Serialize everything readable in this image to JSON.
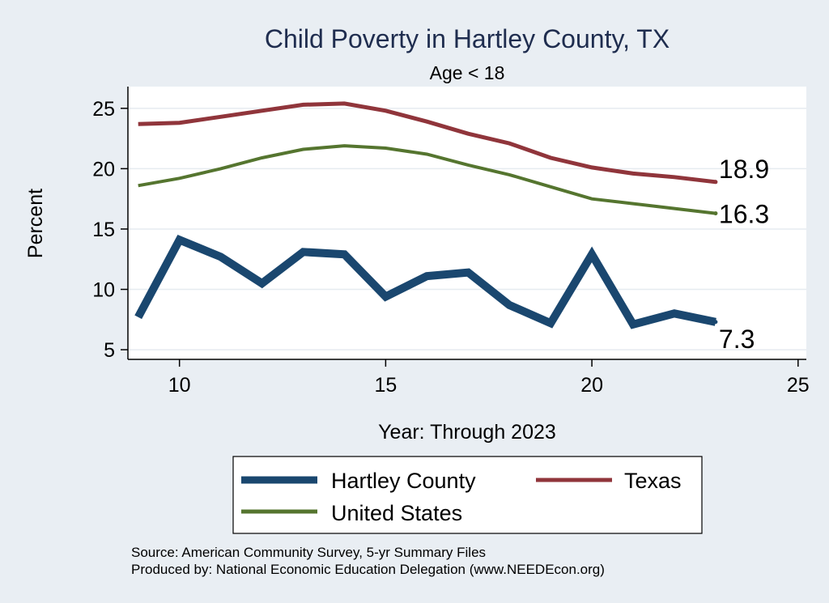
{
  "chart_data": {
    "type": "line",
    "title": "Child Poverty in Hartley County, TX",
    "subtitle": "Age < 18",
    "xlabel": "Year: Through 2023",
    "ylabel": "Percent",
    "xlim": [
      8.75,
      25.2
    ],
    "ylim": [
      4.2,
      26.8
    ],
    "xticks": [
      10,
      15,
      20,
      25
    ],
    "yticks": [
      5,
      10,
      15,
      20,
      25
    ],
    "grid": true,
    "legend_position": "bottom",
    "x": [
      9,
      10,
      11,
      12,
      13,
      14,
      15,
      16,
      17,
      18,
      19,
      20,
      21,
      22,
      23
    ],
    "series": [
      {
        "name": "Hartley County",
        "color": "#1a476f",
        "values": [
          7.7,
          14.1,
          12.7,
          10.5,
          13.1,
          12.9,
          9.4,
          11.1,
          11.4,
          8.7,
          7.2,
          12.9,
          7.1,
          8.0,
          7.3
        ],
        "end_label": "7.3"
      },
      {
        "name": "Texas",
        "color": "#90353b",
        "values": [
          23.7,
          23.8,
          24.3,
          24.8,
          25.3,
          25.4,
          24.8,
          23.9,
          22.9,
          22.1,
          20.9,
          20.1,
          19.6,
          19.3,
          18.9
        ],
        "end_label": "18.9"
      },
      {
        "name": "United States",
        "color": "#55752f",
        "values": [
          18.6,
          19.2,
          20.0,
          20.9,
          21.6,
          21.9,
          21.7,
          21.2,
          20.3,
          19.5,
          18.5,
          17.5,
          17.1,
          16.7,
          16.3
        ],
        "end_label": "16.3"
      }
    ],
    "notes": [
      "Source: American Community Survey, 5-yr Summary Files",
      "Produced by: National Economic Education Delegation (www.NEEDEcon.org)"
    ]
  }
}
